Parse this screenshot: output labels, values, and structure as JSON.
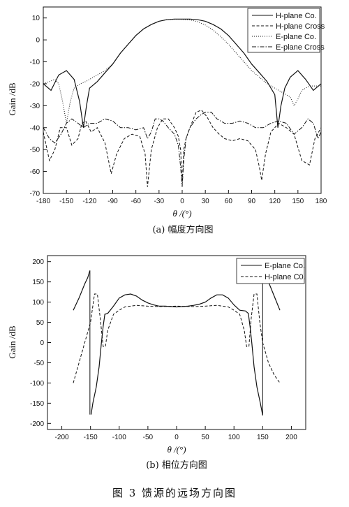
{
  "figure_title": "图 3   馈源的远场方向图",
  "chart_data": [
    {
      "type": "line",
      "caption": "(a)  幅度方向图",
      "xlabel": "θ /(°)",
      "ylabel": "Gain /dB",
      "xlim": [
        -180,
        180
      ],
      "ylim": [
        -70,
        15
      ],
      "xticks": [
        -180,
        -150,
        -120,
        -90,
        -60,
        -30,
        0,
        30,
        60,
        90,
        120,
        150,
        180
      ],
      "yticks": [
        10,
        0,
        -10,
        -20,
        -30,
        -40,
        -50,
        -60,
        -70
      ],
      "legend_position": "top-right",
      "series": [
        {
          "name": "H-plane Co.",
          "style": "solid",
          "color": "#111111",
          "x": [
            -180,
            -170,
            -160,
            -150,
            -140,
            -133,
            -128,
            -124,
            -120,
            -110,
            -100,
            -90,
            -80,
            -70,
            -60,
            -50,
            -40,
            -30,
            -20,
            -10,
            0,
            10,
            20,
            30,
            40,
            50,
            60,
            70,
            80,
            90,
            100,
            110,
            120,
            124,
            128,
            133,
            140,
            150,
            160,
            170,
            180
          ],
          "y": [
            -20,
            -23,
            -16,
            -14,
            -18,
            -28,
            -40,
            -30,
            -22,
            -19,
            -15,
            -11,
            -6,
            -2,
            2,
            5,
            7,
            8.5,
            9.2,
            9.5,
            9.5,
            9.5,
            9.2,
            8.5,
            7,
            5,
            2,
            -2,
            -6,
            -11,
            -15,
            -19,
            -25,
            -40,
            -30,
            -22,
            -17,
            -14,
            -18,
            -23,
            -20
          ]
        },
        {
          "name": "H-plane Cross",
          "style": "dashed",
          "color": "#111111",
          "x": [
            -180,
            -172,
            -165,
            -158,
            -150,
            -143,
            -135,
            -130,
            -125,
            -118,
            -110,
            -100,
            -92,
            -85,
            -75,
            -65,
            -55,
            -48,
            -45,
            -40,
            -32,
            -25,
            -18,
            -10,
            -5,
            -2,
            0,
            2,
            5,
            10,
            18,
            25,
            32,
            40,
            48,
            55,
            65,
            75,
            85,
            95,
            100,
            103,
            108,
            115,
            125,
            135,
            145,
            155,
            165,
            172,
            180
          ],
          "y": [
            -42,
            -55,
            -50,
            -40,
            -40,
            -48,
            -45,
            -38,
            -37,
            -42,
            -40,
            -47,
            -61,
            -52,
            -45,
            -43,
            -44,
            -52,
            -67,
            -50,
            -40,
            -36,
            -36,
            -40,
            -44,
            -50,
            -66,
            -50,
            -45,
            -40,
            -33,
            -32,
            -35,
            -40,
            -43,
            -45,
            -46,
            -45,
            -46,
            -50,
            -58,
            -64,
            -52,
            -42,
            -38,
            -40,
            -43,
            -55,
            -57,
            -45,
            -40
          ]
        },
        {
          "name": "E-plane Co.",
          "style": "dotted",
          "color": "#111111",
          "x": [
            -180,
            -172,
            -165,
            -160,
            -155,
            -150,
            -145,
            -140,
            -132,
            -125,
            -115,
            -100,
            -90,
            -80,
            -70,
            -60,
            -50,
            -40,
            -30,
            -20,
            -10,
            0,
            10,
            20,
            30,
            40,
            50,
            60,
            70,
            80,
            90,
            100,
            110,
            120,
            130,
            140,
            145,
            150,
            155,
            160,
            165,
            172,
            180
          ],
          "y": [
            -20,
            -19,
            -18,
            -20,
            -28,
            -38,
            -28,
            -22,
            -20,
            -19,
            -17,
            -14,
            -11,
            -6,
            -2,
            2,
            5,
            7,
            8.5,
            9.2,
            9.4,
            9.3,
            9.1,
            8.3,
            6.8,
            4.5,
            1.5,
            -2,
            -6,
            -10,
            -14,
            -17,
            -20,
            -22,
            -24,
            -26,
            -30,
            -27,
            -23,
            -22,
            -21,
            -21,
            -21
          ]
        },
        {
          "name": "E-plane Cross",
          "style": "dashdot",
          "color": "#111111",
          "x": [
            -180,
            -172,
            -165,
            -157,
            -150,
            -143,
            -135,
            -128,
            -120,
            -110,
            -100,
            -90,
            -80,
            -70,
            -60,
            -50,
            -45,
            -40,
            -35,
            -30,
            -25,
            -18,
            -10,
            -5,
            -2,
            0,
            2,
            5,
            10,
            18,
            25,
            30,
            38,
            45,
            55,
            65,
            75,
            85,
            95,
            105,
            115,
            125,
            135,
            145,
            155,
            163,
            170,
            176,
            180
          ],
          "y": [
            -40,
            -45,
            -47,
            -43,
            -38,
            -36,
            -38,
            -40,
            -38,
            -38,
            -36,
            -37,
            -40,
            -40,
            -41,
            -40,
            -45,
            -42,
            -36,
            -36,
            -37,
            -40,
            -43,
            -48,
            -58,
            -67,
            -55,
            -45,
            -40,
            -36,
            -34,
            -33,
            -33,
            -36,
            -38,
            -38,
            -37,
            -38,
            -40,
            -40,
            -38,
            -37,
            -38,
            -43,
            -40,
            -36,
            -38,
            -45,
            -42
          ]
        }
      ]
    },
    {
      "type": "line",
      "caption": "(b)  相位方向图",
      "xlabel": "θ /(°)",
      "ylabel": "Gain /dB",
      "xlim": [
        -225,
        225
      ],
      "ylim": [
        -215,
        215
      ],
      "xticks": [
        -200,
        -150,
        -100,
        -50,
        0,
        50,
        100,
        150,
        200
      ],
      "yticks": [
        200,
        150,
        100,
        50,
        0,
        -50,
        -100,
        -150,
        -200
      ],
      "legend_position": "top-right",
      "series": [
        {
          "name": "E-plane Co.",
          "style": "solid",
          "color": "#111111",
          "x": [
            -180,
            -170,
            -160,
            -155,
            -151,
            -149,
            -146,
            -140,
            -135,
            -131,
            -128,
            -125,
            -120,
            -110,
            -100,
            -90,
            -80,
            -70,
            -60,
            -50,
            -40,
            -30,
            -20,
            -10,
            0,
            10,
            20,
            30,
            40,
            50,
            60,
            70,
            80,
            90,
            100,
            110,
            120,
            125,
            128,
            131,
            135,
            140,
            146,
            150,
            152,
            155,
            160,
            170,
            180
          ],
          "y": [
            80,
            110,
            145,
            160,
            178,
            -178,
            -150,
            -110,
            -60,
            0,
            40,
            70,
            72,
            90,
            110,
            118,
            120,
            115,
            105,
            98,
            93,
            90,
            90,
            89,
            88,
            89,
            90,
            92,
            95,
            100,
            110,
            118,
            118,
            110,
            93,
            80,
            78,
            72,
            40,
            0,
            -60,
            -110,
            -150,
            -180,
            175,
            165,
            150,
            115,
            80
          ],
          "breaks": [
            {
              "from_x": -151,
              "to_x": -149
            },
            {
              "from_x": 150,
              "to_x": 152
            }
          ]
        },
        {
          "name": "H-plane C0.",
          "style": "dashed",
          "color": "#111111",
          "x": [
            -180,
            -170,
            -160,
            -150,
            -143,
            -138,
            -133,
            -128,
            -124,
            -120,
            -110,
            -100,
            -90,
            -70,
            -50,
            -30,
            0,
            30,
            50,
            70,
            90,
            100,
            110,
            118,
            122,
            126,
            130,
            135,
            140,
            145,
            150,
            160,
            170,
            180
          ],
          "y": [
            -100,
            -50,
            0,
            50,
            120,
            120,
            60,
            -10,
            -10,
            30,
            70,
            80,
            88,
            92,
            90,
            89,
            90,
            89,
            90,
            92,
            88,
            80,
            70,
            30,
            -10,
            -10,
            60,
            120,
            120,
            50,
            0,
            -50,
            -80,
            -100
          ]
        }
      ]
    }
  ]
}
